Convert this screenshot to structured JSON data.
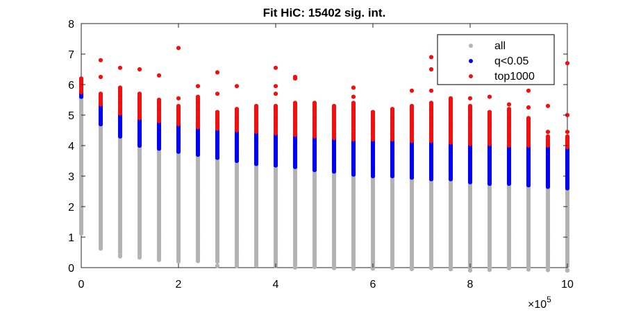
{
  "chart_data": {
    "type": "scatter",
    "title": "Fit HiC: 15402 sig. int.",
    "xlabel": "",
    "ylabel": "",
    "xlim": [
      0,
      10
    ],
    "ylim": [
      0,
      8
    ],
    "x_multiplier": "×10",
    "x_multiplier_exp": "5",
    "xticks": [
      "0",
      "2",
      "4",
      "6",
      "8",
      "10"
    ],
    "yticks": [
      "0",
      "1",
      "2",
      "3",
      "4",
      "5",
      "6",
      "7",
      "8"
    ],
    "legend_position": "top-right",
    "columns_x": [
      0.0,
      0.4,
      0.8,
      1.2,
      1.6,
      2.0,
      2.4,
      2.8,
      3.2,
      3.6,
      4.0,
      4.4,
      4.8,
      5.2,
      5.6,
      6.0,
      6.4,
      6.8,
      7.2,
      7.6,
      8.0,
      8.4,
      8.8,
      9.2,
      9.6,
      10.0
    ],
    "series": [
      {
        "name": "all",
        "color": "#b3b3b3",
        "ranges": [
          [
            0.0,
            1.2,
            5.6
          ],
          [
            0.4,
            0.7,
            4.7
          ],
          [
            0.8,
            0.5,
            4.3
          ],
          [
            1.2,
            0.45,
            4.0
          ],
          [
            1.6,
            0.35,
            3.9
          ],
          [
            2.0,
            0.3,
            3.8
          ],
          [
            2.4,
            0.3,
            3.7
          ],
          [
            2.8,
            0.2,
            3.6
          ],
          [
            3.2,
            0.2,
            3.5
          ],
          [
            3.6,
            0.15,
            3.4
          ],
          [
            4.0,
            0.15,
            3.35
          ],
          [
            4.4,
            0.15,
            3.3
          ],
          [
            4.8,
            0.1,
            3.2
          ],
          [
            5.2,
            0.1,
            3.15
          ],
          [
            5.6,
            0.1,
            3.05
          ],
          [
            6.0,
            0.1,
            3.0
          ],
          [
            6.4,
            0.1,
            3.0
          ],
          [
            6.8,
            0.05,
            2.95
          ],
          [
            7.2,
            0.05,
            2.9
          ],
          [
            7.6,
            0.05,
            2.9
          ],
          [
            8.0,
            0.05,
            2.8
          ],
          [
            8.4,
            0.05,
            2.75
          ],
          [
            8.8,
            0.05,
            2.75
          ],
          [
            9.2,
            0.05,
            2.7
          ],
          [
            9.6,
            0.05,
            2.65
          ],
          [
            10.0,
            0.05,
            2.6
          ]
        ]
      },
      {
        "name": "q<0.05",
        "color": "#0000ee",
        "ranges": [
          [
            0.0,
            5.6,
            5.75
          ],
          [
            0.4,
            4.7,
            5.35
          ],
          [
            0.8,
            4.3,
            5.05
          ],
          [
            1.2,
            4.0,
            4.9
          ],
          [
            1.6,
            3.9,
            4.8
          ],
          [
            2.0,
            3.8,
            4.7
          ],
          [
            2.4,
            3.7,
            4.6
          ],
          [
            2.8,
            3.6,
            4.55
          ],
          [
            3.2,
            3.5,
            4.5
          ],
          [
            3.6,
            3.4,
            4.45
          ],
          [
            4.0,
            3.35,
            4.4
          ],
          [
            4.4,
            3.3,
            4.35
          ],
          [
            4.8,
            3.2,
            4.3
          ],
          [
            5.2,
            3.15,
            4.25
          ],
          [
            5.6,
            3.05,
            4.2
          ],
          [
            6.0,
            3.0,
            4.2
          ],
          [
            6.4,
            3.0,
            4.2
          ],
          [
            6.8,
            2.95,
            4.15
          ],
          [
            7.2,
            2.9,
            4.15
          ],
          [
            7.6,
            2.9,
            4.1
          ],
          [
            8.0,
            2.8,
            4.05
          ],
          [
            8.4,
            2.75,
            4.05
          ],
          [
            8.8,
            2.75,
            4.0
          ],
          [
            9.2,
            2.7,
            4.0
          ],
          [
            9.6,
            2.65,
            4.0
          ],
          [
            10.0,
            2.6,
            3.95
          ]
        ]
      },
      {
        "name": "top1000",
        "color": "#ee1111",
        "ranges": [
          [
            0.0,
            5.75,
            6.2
          ],
          [
            0.4,
            5.35,
            5.7
          ],
          [
            0.8,
            5.05,
            5.9
          ],
          [
            1.2,
            4.9,
            5.7
          ],
          [
            1.6,
            4.8,
            5.5
          ],
          [
            2.0,
            4.7,
            5.3
          ],
          [
            2.4,
            4.6,
            5.6
          ],
          [
            2.8,
            4.55,
            5.1
          ],
          [
            3.2,
            4.5,
            5.2
          ],
          [
            3.6,
            4.45,
            5.3
          ],
          [
            4.0,
            4.4,
            5.3
          ],
          [
            4.4,
            4.35,
            5.4
          ],
          [
            4.8,
            4.3,
            5.4
          ],
          [
            5.2,
            4.25,
            5.3
          ],
          [
            5.6,
            4.2,
            5.4
          ],
          [
            6.0,
            4.2,
            5.1
          ],
          [
            6.4,
            4.2,
            5.2
          ],
          [
            6.8,
            4.15,
            5.3
          ],
          [
            7.2,
            4.15,
            5.4
          ],
          [
            7.6,
            4.1,
            5.5
          ],
          [
            8.0,
            4.05,
            5.3
          ],
          [
            8.4,
            4.05,
            5.1
          ],
          [
            8.8,
            4.0,
            5.2
          ],
          [
            9.2,
            4.0,
            4.9
          ],
          [
            9.6,
            4.0,
            4.3
          ],
          [
            10.0,
            3.95,
            4.3
          ]
        ],
        "outliers": [
          [
            0.4,
            6.8
          ],
          [
            0.4,
            6.25
          ],
          [
            0.8,
            6.55
          ],
          [
            1.2,
            6.5
          ],
          [
            1.6,
            6.3
          ],
          [
            2.0,
            7.2
          ],
          [
            2.0,
            5.55
          ],
          [
            2.4,
            5.95
          ],
          [
            2.8,
            6.4
          ],
          [
            2.8,
            5.7
          ],
          [
            3.2,
            5.95
          ],
          [
            4.0,
            6.55
          ],
          [
            4.0,
            5.95
          ],
          [
            4.0,
            5.7
          ],
          [
            4.4,
            6.25
          ],
          [
            4.4,
            6.2
          ],
          [
            5.6,
            5.9
          ],
          [
            5.6,
            5.6
          ],
          [
            6.8,
            5.8
          ],
          [
            7.2,
            6.9
          ],
          [
            7.2,
            6.5
          ],
          [
            7.2,
            5.8
          ],
          [
            7.6,
            5.55
          ],
          [
            8.0,
            5.55
          ],
          [
            8.4,
            5.6
          ],
          [
            8.8,
            5.35
          ],
          [
            9.2,
            5.8
          ],
          [
            9.2,
            5.25
          ],
          [
            9.6,
            5.3
          ],
          [
            9.6,
            4.45
          ],
          [
            10.0,
            6.7
          ],
          [
            10.0,
            5.0
          ],
          [
            10.0,
            4.45
          ]
        ]
      }
    ]
  }
}
